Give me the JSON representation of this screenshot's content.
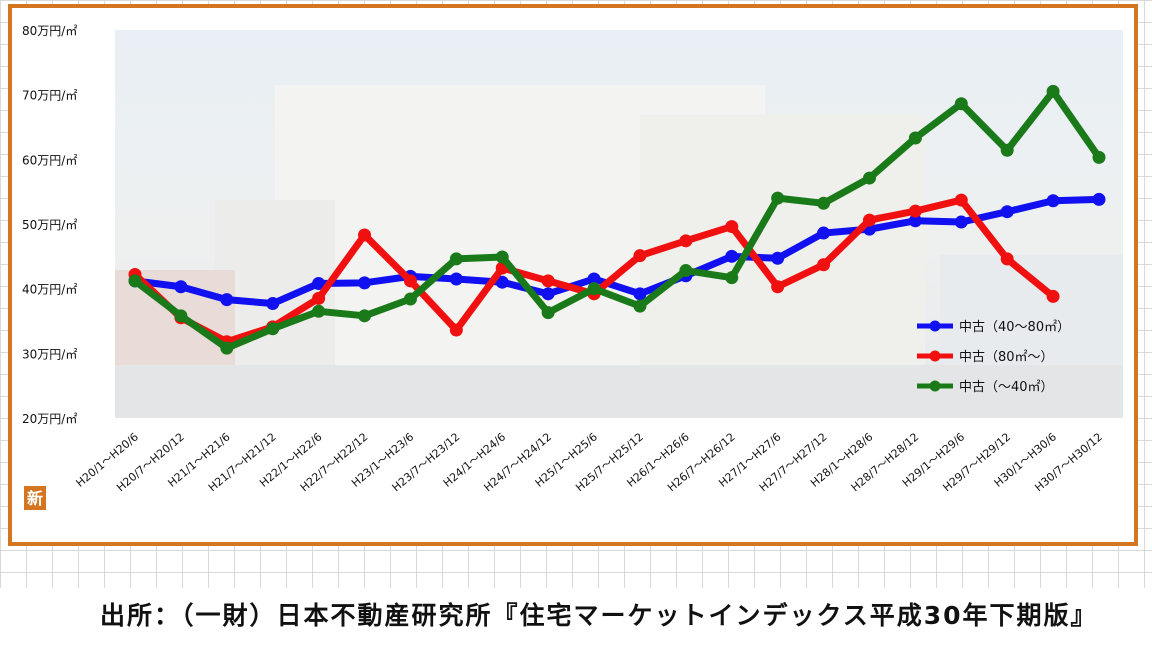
{
  "chart_data": {
    "type": "line",
    "categories": [
      "H20/1～H20/6",
      "H20/7～H20/12",
      "H21/1～H21/6",
      "H21/7～H21/12",
      "H22/1～H22/6",
      "H22/7～H22/12",
      "H23/1～H23/6",
      "H23/7～H23/12",
      "H24/1～H24/6",
      "H24/7～H24/12",
      "H25/1～H25/6",
      "H25/7～H25/12",
      "H26/1～H26/6",
      "H26/7～H26/12",
      "H27/1～H27/6",
      "H27/7～H27/12",
      "H28/1～H28/6",
      "H28/7～H28/12",
      "H29/1～H29/6",
      "H29/7～H29/12",
      "H30/1～H30/6",
      "H30/7～H30/12"
    ],
    "yticks": [
      "20万円/㎡",
      "30万円/㎡",
      "40万円/㎡",
      "50万円/㎡",
      "60万円/㎡",
      "70万円/㎡",
      "80万円/㎡"
    ],
    "ylim": [
      20,
      80
    ],
    "series": [
      {
        "name": "中古（40～80㎡）",
        "color": "#1010f0",
        "values": [
          41.2,
          40.3,
          38.3,
          37.7,
          40.8,
          40.9,
          41.9,
          41.5,
          41.0,
          39.2,
          41.5,
          39.2,
          42.0,
          45.0,
          44.7,
          48.6,
          49.2,
          50.5,
          50.3,
          51.9,
          53.6,
          53.8
        ]
      },
      {
        "name": "中古（80㎡～）",
        "color": "#f01010",
        "values": [
          42.2,
          35.5,
          31.8,
          34.1,
          38.5,
          48.3,
          41.2,
          33.6,
          43.2,
          41.2,
          39.2,
          45.1,
          47.4,
          49.6,
          40.3,
          43.7,
          50.6,
          52.0,
          53.7,
          44.6,
          38.8,
          null
        ]
      },
      {
        "name": "中古（～40㎡）",
        "color": "#1a7a1a",
        "values": [
          41.2,
          35.8,
          30.8,
          33.8,
          36.5,
          35.8,
          38.4,
          44.6,
          44.9,
          36.3,
          40.0,
          37.3,
          42.8,
          41.7,
          54.0,
          53.2,
          57.1,
          63.3,
          68.6,
          61.4,
          70.5,
          60.3
        ]
      }
    ],
    "legend_position": "bottom-right",
    "grid": false,
    "badge": "新"
  },
  "source": "出所：（一財）日本不動産研究所『住宅マーケットインデックス平成30年下期版』"
}
